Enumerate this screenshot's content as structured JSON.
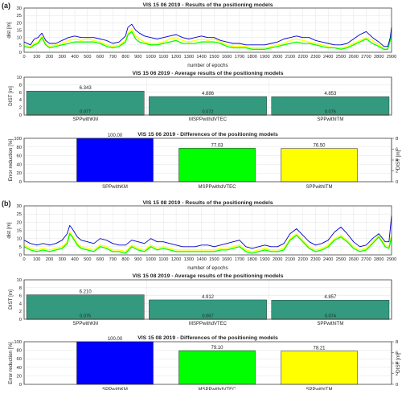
{
  "chart_data": [
    {
      "type": "line",
      "panel_letter": "(a)",
      "title": "VIS 15 06 2019 - Results of the positioning models",
      "xlabel": "number of epochs",
      "ylabel": "dist [m]",
      "xlim": [
        0,
        2900
      ],
      "ylim": [
        0,
        30
      ],
      "xticks": [
        "0",
        "100",
        "200",
        "300",
        "400",
        "500",
        "600",
        "700",
        "800",
        "900",
        "1000",
        "1100",
        "1200",
        "1300",
        "1400",
        "1500",
        "1600",
        "1700",
        "1800",
        "1900",
        "2000",
        "2100",
        "2200",
        "2300",
        "2400",
        "2500",
        "2600",
        "2700",
        "2800",
        "2900"
      ],
      "yticks": [
        "0",
        "5",
        "10",
        "15",
        "20",
        "25",
        "30"
      ],
      "grid": true,
      "series": [
        {
          "color": "#ffff00",
          "x": [
            0,
            50,
            80,
            110,
            140,
            170,
            200,
            250,
            300,
            350,
            400,
            450,
            500,
            550,
            600,
            650,
            700,
            750,
            800,
            820,
            850,
            880,
            910,
            950,
            1000,
            1050,
            1100,
            1150,
            1200,
            1250,
            1300,
            1350,
            1400,
            1450,
            1500,
            1550,
            1600,
            1650,
            1700,
            1750,
            1800,
            1850,
            1900,
            1950,
            2000,
            2050,
            2100,
            2150,
            2200,
            2250,
            2300,
            2350,
            2400,
            2450,
            2500,
            2550,
            2600,
            2650,
            2700,
            2750,
            2800,
            2840,
            2870,
            2890,
            2900
          ],
          "y": [
            5,
            4,
            6,
            7,
            11,
            6,
            4,
            5,
            6,
            8,
            9,
            8,
            9,
            8,
            7,
            5,
            4,
            5,
            8,
            13,
            16,
            11,
            9,
            7,
            6,
            6,
            7,
            9,
            10,
            8,
            7,
            8,
            9,
            8,
            9,
            7,
            5,
            4,
            4,
            4,
            3,
            3,
            3,
            4,
            5,
            6,
            8,
            9,
            8,
            7,
            6,
            5,
            4,
            3,
            3,
            4,
            6,
            8,
            10,
            8,
            5,
            3,
            3,
            10,
            14
          ]
        },
        {
          "color": "#00ff00",
          "x": [
            0,
            50,
            80,
            110,
            140,
            170,
            200,
            250,
            300,
            350,
            400,
            450,
            500,
            550,
            600,
            650,
            700,
            750,
            800,
            820,
            850,
            880,
            910,
            950,
            1000,
            1050,
            1100,
            1150,
            1200,
            1250,
            1300,
            1350,
            1400,
            1450,
            1500,
            1550,
            1600,
            1650,
            1700,
            1750,
            1800,
            1850,
            1900,
            1950,
            2000,
            2050,
            2100,
            2150,
            2200,
            2250,
            2300,
            2350,
            2400,
            2450,
            2500,
            2550,
            2600,
            2650,
            2700,
            2750,
            2800,
            2840,
            2870,
            2890,
            2900
          ],
          "y": [
            4,
            3,
            5,
            6,
            10,
            5,
            3,
            4,
            5,
            6,
            7,
            7,
            7,
            7,
            6,
            4,
            3,
            4,
            7,
            12,
            14,
            9,
            7,
            6,
            5,
            5,
            6,
            7,
            8,
            6,
            6,
            6,
            7,
            7,
            7,
            6,
            4,
            3,
            3,
            3,
            2,
            2,
            2,
            3,
            4,
            5,
            6,
            7,
            6,
            6,
            5,
            4,
            3,
            3,
            2,
            3,
            5,
            7,
            9,
            6,
            4,
            2,
            2,
            8,
            12
          ]
        },
        {
          "color": "#0000cc",
          "x": [
            0,
            50,
            80,
            110,
            140,
            170,
            200,
            250,
            300,
            350,
            400,
            450,
            500,
            550,
            600,
            650,
            700,
            750,
            800,
            820,
            850,
            880,
            910,
            950,
            1000,
            1050,
            1100,
            1150,
            1200,
            1250,
            1300,
            1350,
            1400,
            1450,
            1500,
            1550,
            1600,
            1650,
            1700,
            1750,
            1800,
            1850,
            1900,
            1950,
            2000,
            2050,
            2100,
            2150,
            2200,
            2250,
            2300,
            2350,
            2400,
            2450,
            2500,
            2550,
            2600,
            2650,
            2700,
            2750,
            2800,
            2840,
            2870,
            2890,
            2900
          ],
          "y": [
            7,
            5,
            9,
            10,
            13,
            8,
            6,
            6,
            8,
            10,
            11,
            10,
            10,
            10,
            9,
            8,
            6,
            7,
            11,
            17,
            19,
            15,
            13,
            11,
            10,
            9,
            10,
            11,
            12,
            10,
            9,
            10,
            11,
            10,
            10,
            8,
            7,
            6,
            6,
            5,
            5,
            5,
            5,
            6,
            7,
            9,
            10,
            11,
            10,
            10,
            8,
            7,
            6,
            5,
            5,
            6,
            9,
            12,
            14,
            10,
            7,
            4,
            4,
            10,
            17
          ]
        }
      ]
    },
    {
      "type": "bar",
      "title": "VIS 15 06 2019 - Average results of the positioning models",
      "ylabel": "DIST [m]",
      "ylim": [
        0,
        10
      ],
      "yticks": [
        "0",
        "2",
        "4",
        "6",
        "8",
        "10"
      ],
      "grid": true,
      "categories": [
        "SPPwithKM",
        "MSPPwithdVTEC",
        "SPPwithITM"
      ],
      "bar_color": "#339a80",
      "line_color": "#cc2200",
      "values": [
        6.343,
        4.886,
        4.853
      ],
      "value_labels": [
        "6.343",
        "4.886",
        "4.853"
      ],
      "small_values": [
        0.077,
        0.072,
        0.076
      ],
      "small_labels": [
        "0.077",
        "0.072",
        "0.076"
      ]
    },
    {
      "type": "bar",
      "title": "VIS 15 06 2019 - Differences of the positioning models",
      "ylabel": "Error reduction [%]",
      "y2label": "DIST [m]",
      "ylim": [
        0,
        100
      ],
      "yticks": [
        "0",
        "20",
        "40",
        "60",
        "80",
        "100"
      ],
      "y2ticks": [
        "0",
        "2",
        "4",
        "6",
        "8"
      ],
      "grid": true,
      "categories": [
        "SPPwithKM",
        "MSPPwithdVTEC",
        "SPPwithITM"
      ],
      "colors": [
        "#0000ff",
        "#00ff00",
        "#ffff00"
      ],
      "values": [
        100.0,
        77.03,
        76.5
      ],
      "value_labels": [
        "100.00",
        "77.03",
        "76.50"
      ]
    },
    {
      "type": "line",
      "panel_letter": "(b)",
      "title": "VIS 15 08 2019 - Results of the positioning models",
      "xlabel": "number of epochs",
      "ylabel": "dist [m]",
      "xlim": [
        0,
        2900
      ],
      "ylim": [
        0,
        30
      ],
      "xticks": [
        "0",
        "100",
        "200",
        "300",
        "400",
        "500",
        "600",
        "700",
        "800",
        "900",
        "1000",
        "1100",
        "1200",
        "1300",
        "1400",
        "1500",
        "1600",
        "1700",
        "1800",
        "1900",
        "2000",
        "2100",
        "2200",
        "2300",
        "2400",
        "2500",
        "2600",
        "2700",
        "2800",
        "2900"
      ],
      "yticks": [
        "0",
        "5",
        "10",
        "15",
        "20",
        "25",
        "30"
      ],
      "grid": true,
      "series": [
        {
          "color": "#ffff00",
          "x": [
            0,
            50,
            100,
            150,
            200,
            250,
            300,
            340,
            360,
            380,
            420,
            450,
            500,
            550,
            600,
            650,
            700,
            750,
            800,
            850,
            900,
            950,
            1000,
            1050,
            1100,
            1150,
            1200,
            1250,
            1300,
            1350,
            1400,
            1450,
            1500,
            1550,
            1600,
            1650,
            1700,
            1750,
            1800,
            1850,
            1900,
            1950,
            2000,
            2050,
            2100,
            2150,
            2200,
            2250,
            2300,
            2350,
            2400,
            2450,
            2500,
            2550,
            2600,
            2650,
            2700,
            2750,
            2800,
            2850,
            2880,
            2900
          ],
          "y": [
            6,
            4,
            3,
            4,
            3,
            4,
            5,
            8,
            14,
            12,
            7,
            5,
            4,
            3,
            6,
            5,
            3,
            3,
            2,
            6,
            4,
            3,
            6,
            4,
            5,
            4,
            3,
            3,
            3,
            3,
            3,
            3,
            3,
            4,
            4,
            5,
            6,
            3,
            2,
            3,
            4,
            3,
            3,
            4,
            10,
            13,
            9,
            5,
            3,
            4,
            6,
            10,
            12,
            9,
            5,
            3,
            4,
            8,
            12,
            6,
            5,
            12
          ]
        },
        {
          "color": "#00ff00",
          "x": [
            0,
            50,
            100,
            150,
            200,
            250,
            300,
            340,
            360,
            380,
            420,
            450,
            500,
            550,
            600,
            650,
            700,
            750,
            800,
            850,
            900,
            950,
            1000,
            1050,
            1100,
            1150,
            1200,
            1250,
            1300,
            1350,
            1400,
            1450,
            1500,
            1550,
            1600,
            1650,
            1700,
            1750,
            1800,
            1850,
            1900,
            1950,
            2000,
            2050,
            2100,
            2150,
            2200,
            2250,
            2300,
            2350,
            2400,
            2450,
            2500,
            2550,
            2600,
            2650,
            2700,
            2750,
            2800,
            2850,
            2880,
            2900
          ],
          "y": [
            5,
            3,
            2,
            3,
            2,
            3,
            4,
            7,
            13,
            11,
            6,
            4,
            3,
            2,
            5,
            4,
            2,
            2,
            1,
            5,
            3,
            2,
            5,
            3,
            4,
            3,
            2,
            2,
            2,
            2,
            2,
            2,
            2,
            3,
            3,
            4,
            5,
            2,
            1,
            2,
            3,
            2,
            2,
            3,
            9,
            12,
            8,
            4,
            2,
            3,
            5,
            9,
            11,
            8,
            4,
            2,
            3,
            7,
            11,
            5,
            4,
            11
          ]
        },
        {
          "color": "#0000cc",
          "x": [
            0,
            50,
            100,
            150,
            200,
            250,
            300,
            340,
            360,
            380,
            420,
            450,
            500,
            550,
            600,
            650,
            700,
            750,
            800,
            850,
            900,
            950,
            1000,
            1050,
            1100,
            1150,
            1200,
            1250,
            1300,
            1350,
            1400,
            1450,
            1500,
            1550,
            1600,
            1650,
            1700,
            1750,
            1800,
            1850,
            1900,
            1950,
            2000,
            2050,
            2100,
            2150,
            2200,
            2250,
            2300,
            2350,
            2400,
            2450,
            2500,
            2550,
            2600,
            2650,
            2700,
            2750,
            2800,
            2850,
            2880,
            2900
          ],
          "y": [
            9,
            7,
            6,
            7,
            6,
            7,
            9,
            13,
            18,
            16,
            11,
            9,
            8,
            7,
            10,
            9,
            7,
            6,
            6,
            9,
            8,
            7,
            10,
            8,
            8,
            7,
            6,
            5,
            5,
            5,
            6,
            6,
            5,
            6,
            7,
            8,
            9,
            5,
            4,
            5,
            6,
            5,
            5,
            7,
            13,
            16,
            12,
            8,
            6,
            7,
            9,
            14,
            17,
            13,
            8,
            5,
            6,
            10,
            13,
            8,
            8,
            24
          ]
        }
      ]
    },
    {
      "type": "bar",
      "title": "VIS 15 08 2019 - Average results of the positioning models",
      "ylabel": "DIST [m]",
      "ylim": [
        0,
        10
      ],
      "yticks": [
        "0",
        "2",
        "4",
        "6",
        "8",
        "10"
      ],
      "grid": true,
      "categories": [
        "SPPwithKM",
        "MSPPwithdVTEC",
        "SPPwithITM"
      ],
      "bar_color": "#339a80",
      "line_color": "#cc2200",
      "values": [
        6.21,
        4.912,
        4.857
      ],
      "value_labels": [
        "6.210",
        "4.912",
        "4.857"
      ],
      "small_values": [
        0.075,
        0.067,
        0.074
      ],
      "small_labels": [
        "0.075",
        "0.067",
        "0.074"
      ]
    },
    {
      "type": "bar",
      "title": "VIS 15 08 2019 - Differences of the positioning models",
      "ylabel": "Error reduction [%]",
      "y2label": "DIST [m]",
      "ylim": [
        0,
        100
      ],
      "yticks": [
        "0",
        "20",
        "40",
        "60",
        "80",
        "100"
      ],
      "y2ticks": [
        "0",
        "2",
        "4",
        "6",
        "8"
      ],
      "grid": true,
      "categories": [
        "SPPwithKM",
        "MSPPwithdVTEC",
        "SPPwithITM"
      ],
      "colors": [
        "#0000ff",
        "#00ff00",
        "#ffff00"
      ],
      "values": [
        100.0,
        79.1,
        78.21
      ],
      "value_labels": [
        "100.00",
        "79.10",
        "78.21"
      ]
    }
  ]
}
